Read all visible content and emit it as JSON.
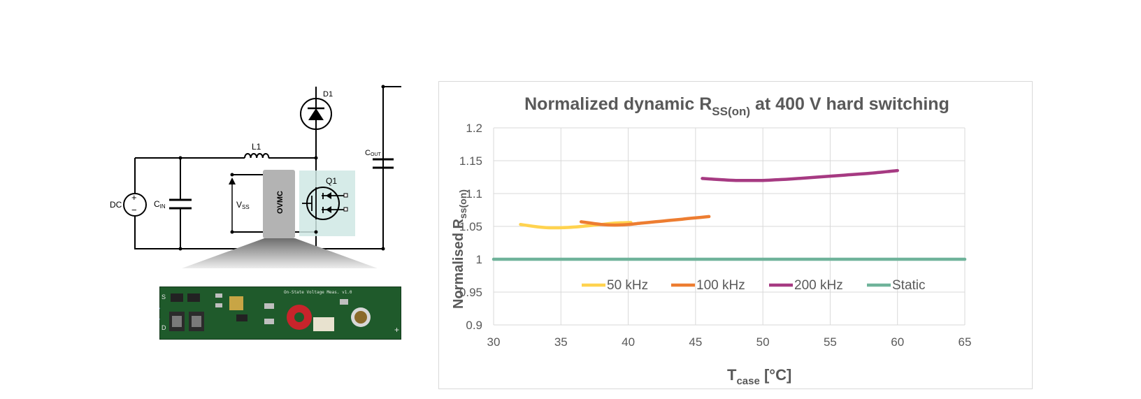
{
  "schematic": {
    "source_label": "DC",
    "source_plus": "+",
    "source_minus": "−",
    "cin_main": "C",
    "cin_sub": "IN",
    "inductor_label": "L1",
    "diode_label": "D1",
    "cout_main": "C",
    "cout_sub": "OUT",
    "vss_main": "V",
    "vss_sub": "SS",
    "ovmc_label": "OVMC",
    "q1_label": "Q1"
  },
  "pcb": {
    "silkscreen": "On-State Voltage Meas. v1.0",
    "pin_s": "S",
    "pin_d": "D",
    "plus": "+",
    "colors": {
      "board": "#1f5a2b",
      "toroid": "#c8242b"
    }
  },
  "chart_data": {
    "type": "line",
    "title_main": "Normalized dynamic R",
    "title_sub": "SS(on)",
    "title_rest": " at 400 V hard switching",
    "ylabel_main": "Normalised R",
    "ylabel_sub": "ss(on)",
    "xlabel_main": "T",
    "xlabel_sub": "case",
    "xlabel_rest": " [°C]",
    "xlim": [
      30,
      65
    ],
    "ylim": [
      0.9,
      1.2
    ],
    "xticks": [
      "30",
      "35",
      "40",
      "45",
      "50",
      "55",
      "60",
      "65"
    ],
    "yticks": [
      "0.9",
      "0.95",
      "1",
      "1.05",
      "1.1",
      "1.15",
      "1.2"
    ],
    "grid": true,
    "legend_position": "inside-bottom",
    "series": [
      {
        "name": "50 kHz",
        "color": "#ffd34f",
        "x": [
          32,
          33,
          34,
          35,
          36,
          37,
          38,
          39,
          40.2
        ],
        "y": [
          1.053,
          1.05,
          1.048,
          1.048,
          1.049,
          1.051,
          1.053,
          1.055,
          1.056
        ]
      },
      {
        "name": "100 kHz",
        "color": "#ed7d31",
        "x": [
          36.5,
          38,
          39,
          40,
          41,
          42,
          43,
          44,
          45,
          46
        ],
        "y": [
          1.057,
          1.053,
          1.052,
          1.053,
          1.055,
          1.057,
          1.059,
          1.061,
          1.063,
          1.065
        ]
      },
      {
        "name": "200 kHz",
        "color": "#a63a82",
        "x": [
          45.5,
          47,
          48,
          49,
          50,
          51,
          52,
          54,
          56,
          58,
          60
        ],
        "y": [
          1.123,
          1.121,
          1.12,
          1.12,
          1.12,
          1.121,
          1.122,
          1.125,
          1.128,
          1.131,
          1.135
        ]
      },
      {
        "name": "Static",
        "color": "#6fb39a",
        "x": [
          30,
          65
        ],
        "y": [
          1.0,
          1.0
        ]
      }
    ]
  }
}
